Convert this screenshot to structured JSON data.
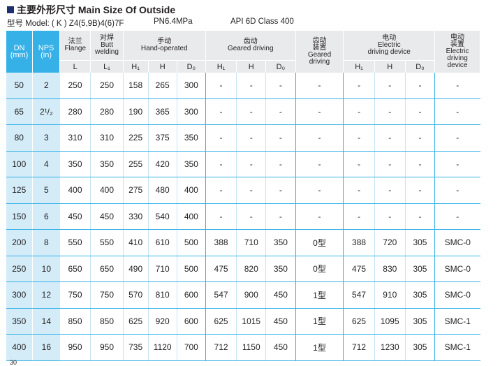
{
  "title": "主要外形尺寸 Main Size Of Outside",
  "model": {
    "label": "型号 Model: ( K ) Z4(5,9B)4(6)7F",
    "pressure": "PN6.4MPa",
    "standard": "API 6D Class 400"
  },
  "header": {
    "dn": "DN",
    "dn_unit": "(mm)",
    "nps": "NPS",
    "nps_unit": "(in)",
    "flange_cn": "法兰",
    "flange_en": "Flange",
    "butt_cn": "对焊",
    "butt_en1": "Butt",
    "butt_en2": "welding",
    "hand_cn": "手动",
    "hand_en": "Hand-operated",
    "gear_cn": "齿动",
    "gear_en": "Geared driving",
    "gear_dev_cn1": "齿动",
    "gear_dev_cn2": "装置",
    "gear_dev_en1": "Geared",
    "gear_dev_en2": "driving",
    "elec_cn": "电动",
    "elec_en1": "Electric",
    "elec_en2": "driving device",
    "elec_dev_cn1": "电动",
    "elec_dev_cn2": "装置",
    "elec_dev_en1": "Electric",
    "elec_dev_en2": "driving",
    "elec_dev_en3": "device",
    "sub": [
      "L",
      "L₁",
      "H₁",
      "H",
      "D₀",
      "H₁",
      "H",
      "D₀",
      "H₁",
      "H",
      "D₀"
    ]
  },
  "rows": [
    [
      "50",
      "2",
      "250",
      "250",
      "158",
      "265",
      "300",
      "-",
      "-",
      "-",
      "-",
      "-",
      "-",
      "-",
      "-"
    ],
    [
      "65",
      "2¹/₂",
      "280",
      "280",
      "190",
      "365",
      "300",
      "-",
      "-",
      "-",
      "-",
      "-",
      "-",
      "-",
      "-"
    ],
    [
      "80",
      "3",
      "310",
      "310",
      "225",
      "375",
      "350",
      "-",
      "-",
      "-",
      "-",
      "-",
      "-",
      "-",
      "-"
    ],
    [
      "100",
      "4",
      "350",
      "350",
      "255",
      "420",
      "350",
      "-",
      "-",
      "-",
      "-",
      "-",
      "-",
      "-",
      "-"
    ],
    [
      "125",
      "5",
      "400",
      "400",
      "275",
      "480",
      "400",
      "-",
      "-",
      "-",
      "-",
      "-",
      "-",
      "-",
      "-"
    ],
    [
      "150",
      "6",
      "450",
      "450",
      "330",
      "540",
      "400",
      "-",
      "-",
      "-",
      "-",
      "-",
      "-",
      "-",
      "-"
    ],
    [
      "200",
      "8",
      "550",
      "550",
      "410",
      "610",
      "500",
      "388",
      "710",
      "350",
      "0型",
      "388",
      "720",
      "305",
      "SMC-0"
    ],
    [
      "250",
      "10",
      "650",
      "650",
      "490",
      "710",
      "500",
      "475",
      "820",
      "350",
      "0型",
      "475",
      "830",
      "305",
      "SMC-0"
    ],
    [
      "300",
      "12",
      "750",
      "750",
      "570",
      "810",
      "600",
      "547",
      "900",
      "450",
      "1型",
      "547",
      "910",
      "305",
      "SMC-0"
    ],
    [
      "350",
      "14",
      "850",
      "850",
      "625",
      "920",
      "600",
      "625",
      "1015",
      "450",
      "1型",
      "625",
      "1095",
      "305",
      "SMC-1"
    ],
    [
      "400",
      "16",
      "950",
      "950",
      "735",
      "1120",
      "700",
      "712",
      "1150",
      "450",
      "1型",
      "712",
      "1230",
      "305",
      "SMC-1"
    ]
  ],
  "footer_mark": "30"
}
